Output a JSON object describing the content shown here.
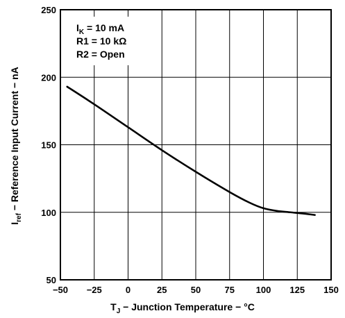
{
  "chart_data": {
    "type": "line",
    "title": "",
    "xlabel": {
      "main": "T",
      "sub": "J",
      "rest": " − Junction Temperature − °C"
    },
    "ylabel": {
      "main": "I",
      "sub": "ref",
      "rest": " − Reference Input Current − nA"
    },
    "xlim": [
      -50,
      150
    ],
    "ylim": [
      50,
      250
    ],
    "xticks": [
      -50,
      -25,
      0,
      25,
      50,
      75,
      100,
      125,
      150
    ],
    "xtick_labels": [
      "−50",
      "−25",
      "0",
      "25",
      "50",
      "75",
      "100",
      "125",
      "150"
    ],
    "yticks": [
      50,
      100,
      150,
      200,
      250
    ],
    "ytick_labels": [
      "50",
      "100",
      "150",
      "200",
      "250"
    ],
    "grid": true,
    "conditions": [
      {
        "main": "I",
        "sub": "K",
        "rest": " = 10 mA"
      },
      {
        "main": "R1 = 10 kΩ",
        "sub": "",
        "rest": ""
      },
      {
        "main": "R2 = Open",
        "sub": "",
        "rest": ""
      }
    ],
    "series": [
      {
        "x": [
          -45,
          -25,
          0,
          25,
          50,
          75,
          90,
          100,
          110,
          120,
          130,
          138
        ],
        "y": [
          193,
          180,
          163,
          146,
          130,
          115,
          107,
          103,
          101,
          100,
          99,
          98
        ]
      }
    ],
    "colors": {
      "line": "#000000",
      "grid": "#000000",
      "background": "#ffffff"
    }
  }
}
